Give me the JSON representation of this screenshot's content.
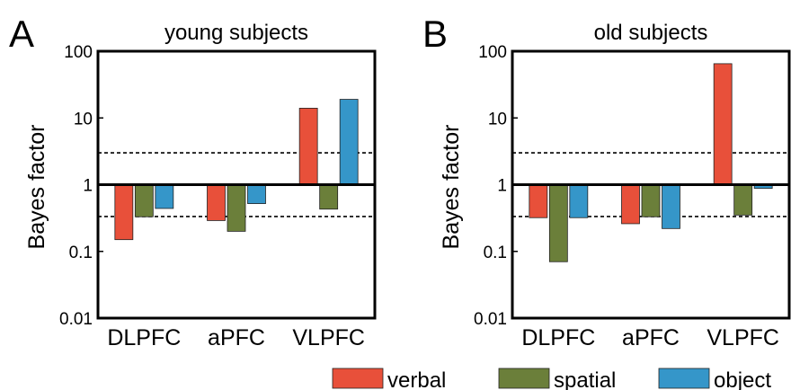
{
  "figure": {
    "legend": [
      {
        "label": "verbal",
        "color": "#e8503a"
      },
      {
        "label": "spatial",
        "color": "#6b7f3a"
      },
      {
        "label": "object",
        "color": "#3596c9"
      }
    ]
  },
  "chart_data": [
    {
      "type": "bar",
      "panel_label": "A",
      "title": "young subjects",
      "ylabel": "Bayes factor",
      "yscale": "log",
      "ylim": [
        0.01,
        100
      ],
      "yticks": [
        "0.01",
        "0.1",
        "1",
        "10",
        "100"
      ],
      "baseline": 1,
      "reference_lines": [
        3,
        0.333
      ],
      "categories": [
        "DLPFC",
        "aPFC",
        "VLPFC"
      ],
      "series": [
        {
          "name": "verbal",
          "color": "#e8503a",
          "values": [
            0.15,
            0.29,
            14
          ]
        },
        {
          "name": "spatial",
          "color": "#6b7f3a",
          "values": [
            0.33,
            0.2,
            0.43
          ]
        },
        {
          "name": "object",
          "color": "#3596c9",
          "values": [
            0.44,
            0.52,
            19
          ]
        }
      ]
    },
    {
      "type": "bar",
      "panel_label": "B",
      "title": "old subjects",
      "ylabel": "Bayes factor",
      "yscale": "log",
      "ylim": [
        0.01,
        100
      ],
      "yticks": [
        "0.01",
        "0.1",
        "1",
        "10",
        "100"
      ],
      "baseline": 1,
      "reference_lines": [
        3,
        0.333
      ],
      "categories": [
        "DLPFC",
        "aPFC",
        "VLPFC"
      ],
      "series": [
        {
          "name": "verbal",
          "color": "#e8503a",
          "values": [
            0.32,
            0.26,
            65
          ]
        },
        {
          "name": "spatial",
          "color": "#6b7f3a",
          "values": [
            0.07,
            0.33,
            0.35
          ]
        },
        {
          "name": "object",
          "color": "#3596c9",
          "values": [
            0.32,
            0.22,
            0.88
          ]
        }
      ]
    }
  ]
}
